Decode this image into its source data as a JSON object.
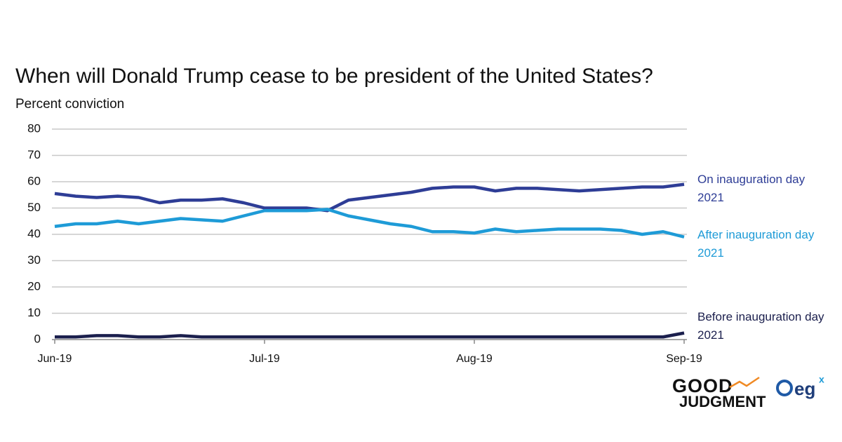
{
  "chart_data": {
    "type": "line",
    "title": "When will Donald Trump cease to be president of the United States?",
    "ylabel": "Percent conviction",
    "categories": [
      "Jun-19",
      null,
      null,
      null,
      null,
      null,
      null,
      null,
      null,
      null,
      "Jul-19",
      null,
      null,
      null,
      null,
      null,
      null,
      null,
      null,
      null,
      "Aug-19",
      null,
      null,
      null,
      null,
      null,
      null,
      null,
      null,
      null,
      "Sep-19"
    ],
    "series": [
      {
        "name": "On inauguration day 2021",
        "color": "#2e3d96",
        "values": [
          55.5,
          54.5,
          54,
          54.5,
          54,
          52,
          53,
          53,
          53.5,
          52,
          50,
          50,
          50,
          49,
          53,
          54,
          55,
          56,
          57.5,
          58,
          58,
          56.5,
          57.5,
          57.5,
          57,
          56.5,
          57,
          57.5,
          58,
          58,
          59
        ]
      },
      {
        "name": "After inauguration day 2021",
        "color": "#1e9bd7",
        "values": [
          43,
          44,
          44,
          45,
          44,
          45,
          46,
          45.5,
          45,
          47,
          49,
          49,
          49,
          49.5,
          47,
          45.5,
          44,
          43,
          41,
          41,
          40.5,
          42,
          41,
          41.5,
          42,
          42,
          42,
          41.5,
          40,
          41,
          39
        ]
      },
      {
        "name": "Before inauguration day 2021",
        "color": "#1b1f4d",
        "values": [
          1,
          1,
          1.5,
          1.5,
          1,
          1,
          1.5,
          1,
          1,
          1,
          1,
          1,
          1,
          1,
          1,
          1,
          1,
          1,
          1,
          1,
          1,
          1,
          1,
          1,
          1,
          1,
          1,
          1,
          1,
          1,
          2.5
        ]
      }
    ],
    "ylim": [
      0,
      80
    ],
    "yticks": [
      0,
      10,
      20,
      30,
      40,
      50,
      60,
      70,
      80
    ],
    "grid": true
  },
  "logo": {
    "brand_top": "GOOD",
    "brand_bottom": "JUDGMENT",
    "partner": "eg",
    "partner_sup": "x"
  }
}
